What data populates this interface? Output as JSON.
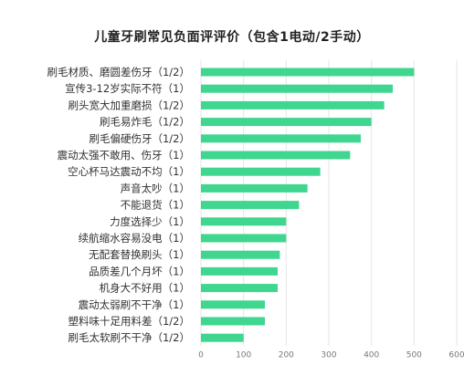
{
  "chart_data": {
    "type": "bar",
    "orientation": "horizontal",
    "title": "儿童牙刷常见负面评评价（包含1电动/2手动）",
    "categories": [
      "刷毛材质、磨圆差伤牙（1/2）",
      "宣传3-12岁实际不符（1）",
      "刷头宽大加重磨损（1/2）",
      "刷毛易炸毛（1/2）",
      "刷毛偏硬伤牙（1/2）",
      "震动太强不敢用、伤牙（1）",
      "空心杯马达震动不均（1）",
      "声音太吵（1）",
      "不能退货（1）",
      "力度选择少（1）",
      "续航缩水容易没电（1）",
      "无配套替换刷头（1）",
      "品质差几个月坏（1）",
      "机身大不好用（1）",
      "震动太弱刷不干净（1）",
      "塑料味十足用料差（1/2）",
      "刷毛太软刷不干净（1/2）"
    ],
    "values": [
      500,
      450,
      430,
      400,
      375,
      350,
      280,
      250,
      230,
      200,
      200,
      185,
      180,
      180,
      150,
      150,
      100
    ],
    "xlim": [
      0,
      600
    ],
    "xticks": [
      0,
      100,
      200,
      300,
      400,
      500,
      600
    ],
    "xlabel": "",
    "ylabel": "",
    "grid": true,
    "bar_color": "#3fd68f"
  }
}
